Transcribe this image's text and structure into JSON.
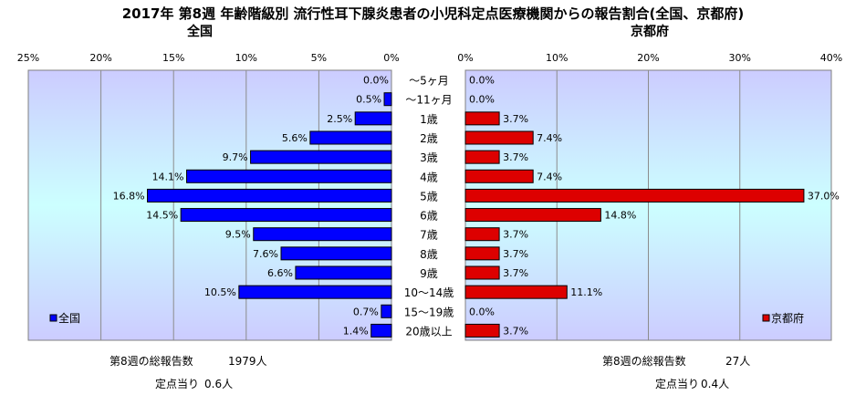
{
  "title": "2017年 第8週 年齢階級別 流行性耳下腺炎患者の小児科定点医療機関からの報告割合(全国、京都府)",
  "age_groups": [
    "～5ヶ月",
    "～11ヶ月",
    "1歳",
    "2歳",
    "3歳",
    "4歳",
    "5歳",
    "6歳",
    "7歳",
    "8歳",
    "9歳",
    "10～14歳",
    "15～19歳",
    "20歳以上"
  ],
  "colors": {
    "national": "#0000ff",
    "kyoto": "#dd0000"
  },
  "chart_data": [
    {
      "type": "bar",
      "orientation": "horizontal",
      "title": "全国",
      "categories": [
        "～5ヶ月",
        "～11ヶ月",
        "1歳",
        "2歳",
        "3歳",
        "4歳",
        "5歳",
        "6歳",
        "7歳",
        "8歳",
        "9歳",
        "10～14歳",
        "15～19歳",
        "20歳以上"
      ],
      "series": [
        {
          "name": "全国",
          "values": [
            0.0,
            0.5,
            2.5,
            5.6,
            9.7,
            14.1,
            16.8,
            14.5,
            9.5,
            7.6,
            6.6,
            10.5,
            0.7,
            1.4
          ]
        }
      ],
      "data_labels": [
        "0.0%",
        "0.5%",
        "2.5%",
        "5.6%",
        "9.7%",
        "14.1%",
        "16.8%",
        "14.5%",
        "9.5%",
        "7.6%",
        "6.6%",
        "10.5%",
        "0.7%",
        "1.4%"
      ],
      "ticks": [
        25,
        20,
        15,
        10,
        5,
        0
      ],
      "tick_labels": [
        "25%",
        "20%",
        "15%",
        "10%",
        "5%",
        "0%"
      ],
      "xlim": [
        0,
        25
      ],
      "direction": "reversed",
      "legend": "bottom-left",
      "grid": "vertical",
      "summary": {
        "label": "第8週の総報告数",
        "value": "1979人",
        "per_label": "定点当り",
        "per_value": "0.6人"
      }
    },
    {
      "type": "bar",
      "orientation": "horizontal",
      "title": "京都府",
      "categories": [
        "～5ヶ月",
        "～11ヶ月",
        "1歳",
        "2歳",
        "3歳",
        "4歳",
        "5歳",
        "6歳",
        "7歳",
        "8歳",
        "9歳",
        "10～14歳",
        "15～19歳",
        "20歳以上"
      ],
      "series": [
        {
          "name": "京都府",
          "values": [
            0.0,
            0.0,
            3.7,
            7.4,
            3.7,
            7.4,
            37.0,
            14.8,
            3.7,
            3.7,
            3.7,
            11.1,
            0.0,
            3.7
          ]
        }
      ],
      "data_labels": [
        "0.0%",
        "0.0%",
        "3.7%",
        "7.4%",
        "3.7%",
        "7.4%",
        "37.0%",
        "14.8%",
        "3.7%",
        "3.7%",
        "3.7%",
        "11.1%",
        "0.0%",
        "3.7%"
      ],
      "ticks": [
        0,
        10,
        20,
        30,
        40
      ],
      "tick_labels": [
        "0%",
        "10%",
        "20%",
        "30%",
        "40%"
      ],
      "xlim": [
        0,
        40
      ],
      "direction": "normal",
      "legend": "bottom-right",
      "grid": "vertical",
      "summary": {
        "label": "第8週の総報告数",
        "value": "27人",
        "per_label": "定点当り",
        "per_value": "0.4人"
      }
    }
  ]
}
